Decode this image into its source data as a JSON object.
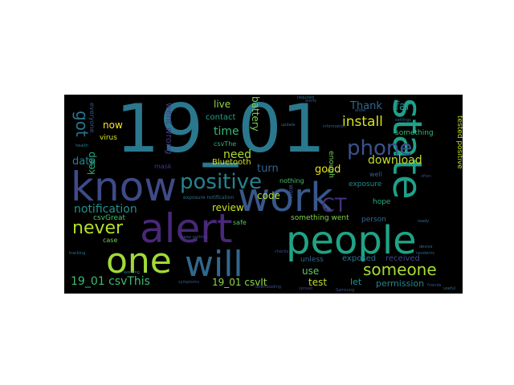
{
  "words": [
    {
      "text": "19_01",
      "color": "#2a788e"
    },
    {
      "text": "know",
      "color": "#3e4a89"
    },
    {
      "text": "work",
      "color": "#38588c"
    },
    {
      "text": "state",
      "color": "#1fa188"
    },
    {
      "text": "alert",
      "color": "#482878"
    },
    {
      "text": "people",
      "color": "#20a386"
    },
    {
      "text": "one",
      "color": "#a0da39"
    },
    {
      "text": "will",
      "color": "#31688e"
    },
    {
      "text": "positive",
      "color": "#26828e"
    },
    {
      "text": "phone",
      "color": "#3b528b"
    },
    {
      "text": "CT",
      "color": "#46327e"
    },
    {
      "text": "never",
      "color": "#b5de2b"
    },
    {
      "text": "got",
      "color": "#2c728e"
    },
    {
      "text": "someone",
      "color": "#a8db34"
    },
    {
      "text": "install",
      "color": "#d8e219"
    },
    {
      "text": "download",
      "color": "#c2df23"
    },
    {
      "text": "notification",
      "color": "#21918c"
    },
    {
      "text": "19_01 csvThis",
      "color": "#3dbc74"
    },
    {
      "text": "time",
      "color": "#38b977"
    },
    {
      "text": "need",
      "color": "#addc30"
    },
    {
      "text": "data",
      "color": "#25848e"
    },
    {
      "text": "review",
      "color": "#cde11d"
    },
    {
      "text": "keep",
      "color": "#29af7f"
    },
    {
      "text": "code",
      "color": "#b8de29"
    },
    {
      "text": "turn",
      "color": "#33638d"
    },
    {
      "text": "good",
      "color": "#e5e419"
    },
    {
      "text": "Thank",
      "color": "#31688e"
    },
    {
      "text": "far",
      "color": "#228c8d"
    },
    {
      "text": "live",
      "color": "#90d743"
    },
    {
      "text": "now",
      "color": "#fde725"
    },
    {
      "text": "went wrong",
      "color": "#443983"
    },
    {
      "text": "battery",
      "color": "#7ad151"
    },
    {
      "text": "contact",
      "color": "#1fa187"
    },
    {
      "text": "Bluetooth",
      "color": "#d2e21b"
    },
    {
      "text": "19_01 csvIt",
      "color": "#8fd744"
    },
    {
      "text": "use",
      "color": "#5ec962"
    },
    {
      "text": "test",
      "color": "#bddf26"
    },
    {
      "text": "let",
      "color": "#1f958b"
    },
    {
      "text": "permission",
      "color": "#24868e"
    },
    {
      "text": "received",
      "color": "#3f4889"
    },
    {
      "text": "exposed",
      "color": "#2c728e"
    },
    {
      "text": "unless",
      "color": "#31688e"
    },
    {
      "text": "something went",
      "color": "#7fd34e"
    },
    {
      "text": "person",
      "color": "#2e6e8e"
    },
    {
      "text": "hope",
      "color": "#2ab07f"
    },
    {
      "text": "exposure",
      "color": "#23898e"
    },
    {
      "text": "enough",
      "color": "#73d056"
    },
    {
      "text": "nothing",
      "color": "#48c16e"
    },
    {
      "text": "tested positive",
      "color": "#c5e021"
    },
    {
      "text": "something",
      "color": "#35b779"
    },
    {
      "text": "csvGreat",
      "color": "#4ac16d"
    },
    {
      "text": "case",
      "color": "#6ccd5a"
    },
    {
      "text": "virus",
      "color": "#dde318"
    },
    {
      "text": "everyone",
      "color": "#39568c"
    },
    {
      "text": "mask",
      "color": "#443a83"
    },
    {
      "text": "safe",
      "color": "#52c569"
    },
    {
      "text": "csvThe",
      "color": "#2db27d"
    },
    {
      "text": "well",
      "color": "#355f8d"
    },
    {
      "text": "way",
      "color": "#3e4c8a"
    },
    {
      "text": "exposure notification",
      "color": "#2d708e"
    },
    {
      "text": "ready",
      "color": "#2f6c8e"
    },
    {
      "text": "update",
      "color": "#306a8e"
    },
    {
      "text": "alerts",
      "color": "#375a8c"
    },
    {
      "text": "device",
      "color": "#2e6f8e"
    },
    {
      "text": "tracking",
      "color": "#2b748e"
    },
    {
      "text": "health",
      "color": "#287c8e"
    },
    {
      "text": "friends",
      "color": "#3a548c"
    },
    {
      "text": "useful",
      "color": "#2f6b8e"
    },
    {
      "text": "keep getting",
      "color": "#3c508b"
    },
    {
      "text": "downloading",
      "color": "#3b518b"
    },
    {
      "text": "residents",
      "color": "#34608d"
    },
    {
      "text": "information",
      "color": "#355e8d"
    },
    {
      "text": "working",
      "color": "#2c718e"
    },
    {
      "text": "spread",
      "color": "#404688"
    },
    {
      "text": "checks",
      "color": "#3d4d8a"
    },
    {
      "text": "settings",
      "color": "#31678e"
    },
    {
      "text": "required",
      "color": "#2e6d8e"
    },
    {
      "text": "symptoms",
      "color": "#365c8d"
    },
    {
      "text": "Samsung",
      "color": "#3a538b"
    },
    {
      "text": "often",
      "color": "#3f4788"
    },
    {
      "text": "allow",
      "color": "#33628d"
    }
  ]
}
